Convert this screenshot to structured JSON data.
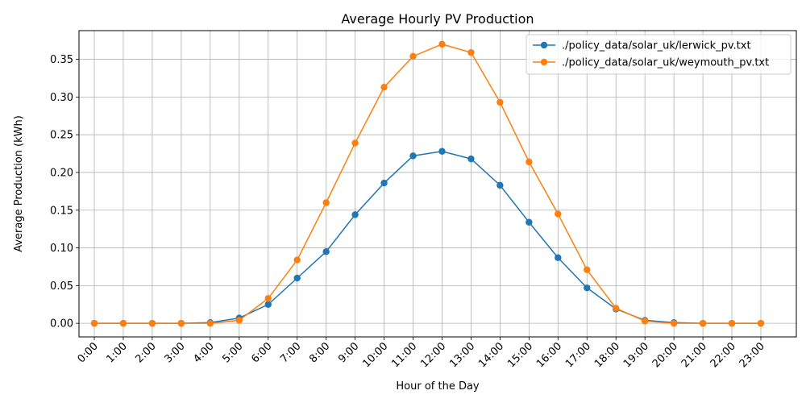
{
  "chart_data": {
    "type": "line",
    "title": "Average Hourly PV Production",
    "xlabel": "Hour of the Day",
    "ylabel": "Average Production (kWh)",
    "categories": [
      "0:00",
      "1:00",
      "2:00",
      "3:00",
      "4:00",
      "5:00",
      "6:00",
      "7:00",
      "8:00",
      "9:00",
      "10:00",
      "11:00",
      "12:00",
      "13:00",
      "14:00",
      "15:00",
      "16:00",
      "17:00",
      "18:00",
      "19:00",
      "20:00",
      "21:00",
      "22:00",
      "23:00"
    ],
    "ylim": [
      -0.018,
      0.388
    ],
    "yticks": [
      0.0,
      0.05,
      0.1,
      0.15,
      0.2,
      0.25,
      0.3,
      0.35
    ],
    "ytick_labels": [
      "0.00",
      "0.05",
      "0.10",
      "0.15",
      "0.20",
      "0.25",
      "0.30",
      "0.35"
    ],
    "grid": true,
    "legend": "top-right",
    "series": [
      {
        "name": "./policy_data/solar_uk/lerwick_pv.txt",
        "color": "#1f77b4",
        "values": [
          0,
          0,
          0,
          0,
          0.001,
          0.007,
          0.025,
          0.06,
          0.095,
          0.144,
          0.186,
          0.222,
          0.228,
          0.218,
          0.183,
          0.134,
          0.087,
          0.047,
          0.019,
          0.004,
          0.001,
          0,
          0,
          0
        ]
      },
      {
        "name": "./policy_data/solar_uk/weymouth_pv.txt",
        "color": "#ff7f0e",
        "values": [
          0,
          0,
          0,
          0,
          0,
          0.004,
          0.033,
          0.084,
          0.16,
          0.239,
          0.313,
          0.354,
          0.37,
          0.359,
          0.293,
          0.214,
          0.145,
          0.071,
          0.02,
          0.003,
          0,
          0,
          0,
          0
        ]
      }
    ]
  }
}
